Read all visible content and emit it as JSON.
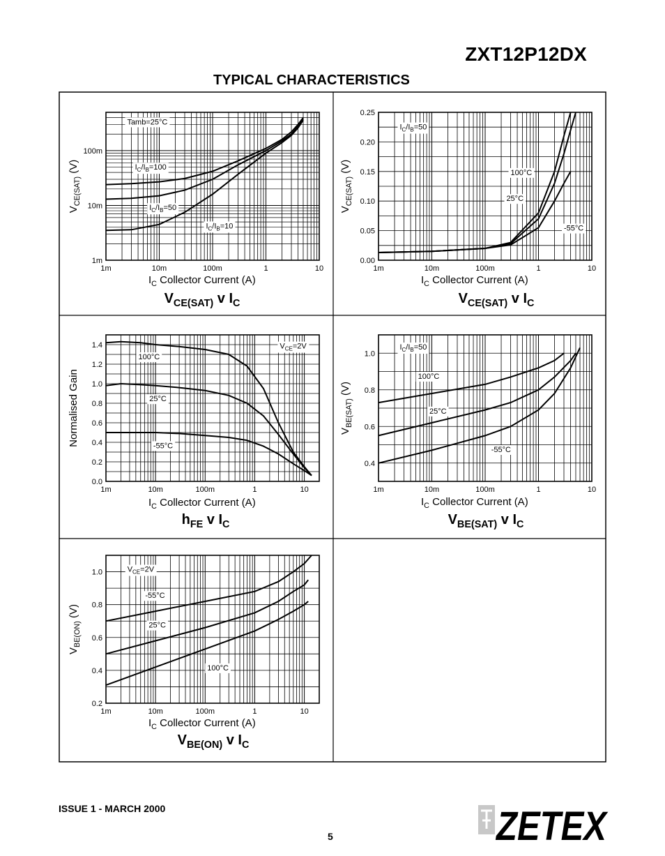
{
  "header": {
    "part_number": "ZXT12P12DX",
    "section_title": "TYPICAL CHARACTERISTICS"
  },
  "footer": {
    "issue": "ISSUE 1 - MARCH 2000",
    "page": "5",
    "logo_text": "ZETEX"
  },
  "chart_data": [
    {
      "type": "line",
      "title_main": "V",
      "title_sub": "CE(SAT)",
      "title_tail": " v I",
      "title_tail_sub": "C",
      "xlabel_main": "I",
      "xlabel_sub": "C",
      "xlabel_tail": "  Collector Current (A)",
      "ylabel_main": "V",
      "ylabel_sub": "CE(SAT)",
      "ylabel_tail": "  (V)",
      "xscale": "log",
      "yscale": "log",
      "xlim": [
        0.001,
        10
      ],
      "ylim": [
        0.001,
        0.5
      ],
      "xticks": [
        {
          "v": 0.001,
          "l": "1m"
        },
        {
          "v": 0.01,
          "l": "10m"
        },
        {
          "v": 0.1,
          "l": "100m"
        },
        {
          "v": 1,
          "l": "1"
        },
        {
          "v": 10,
          "l": "10"
        }
      ],
      "yticks": [
        {
          "v": 0.001,
          "l": "1m"
        },
        {
          "v": 0.01,
          "l": "10m"
        },
        {
          "v": 0.1,
          "l": "100m"
        }
      ],
      "annotations": [
        {
          "text": "Tamb=25°C",
          "x": 0.0025,
          "y": 0.3
        },
        {
          "main": "I",
          "s1": "C",
          "mid": "/I",
          "s2": "B",
          "tail": "=100",
          "x": 0.0035,
          "y": 0.045
        },
        {
          "main": "I",
          "s1": "C",
          "mid": "/I",
          "s2": "B",
          "tail": "=50",
          "x": 0.0065,
          "y": 0.0082
        },
        {
          "main": "I",
          "s1": "C",
          "mid": "/I",
          "s2": "B",
          "tail": "=10",
          "x": 0.075,
          "y": 0.0038
        }
      ],
      "series": [
        {
          "x": [
            0.001,
            0.003,
            0.01,
            0.03,
            0.1,
            0.3,
            1,
            2,
            3,
            4,
            5
          ],
          "y": [
            0.024,
            0.025,
            0.027,
            0.031,
            0.042,
            0.065,
            0.11,
            0.16,
            0.22,
            0.3,
            0.4
          ]
        },
        {
          "x": [
            0.001,
            0.003,
            0.01,
            0.03,
            0.1,
            0.3,
            1,
            2,
            3,
            4,
            5
          ],
          "y": [
            0.013,
            0.0135,
            0.015,
            0.019,
            0.03,
            0.055,
            0.1,
            0.15,
            0.2,
            0.28,
            0.38
          ]
        },
        {
          "x": [
            0.001,
            0.003,
            0.01,
            0.03,
            0.1,
            0.3,
            1,
            2,
            3,
            4,
            5
          ],
          "y": [
            0.0035,
            0.0036,
            0.0045,
            0.0075,
            0.016,
            0.037,
            0.09,
            0.14,
            0.19,
            0.26,
            0.36
          ]
        }
      ]
    },
    {
      "type": "line",
      "title_main": "V",
      "title_sub": "CE(SAT)",
      "title_tail": " v I",
      "title_tail_sub": "C",
      "xlabel_main": "I",
      "xlabel_sub": "C",
      "xlabel_tail": "  Collector Current (A)",
      "ylabel_main": "V",
      "ylabel_sub": "CE(SAT)",
      "ylabel_tail": "  (V)",
      "xscale": "log",
      "yscale": "linear",
      "xlim": [
        0.001,
        10
      ],
      "ylim": [
        0,
        0.25
      ],
      "xticks": [
        {
          "v": 0.001,
          "l": "1m"
        },
        {
          "v": 0.01,
          "l": "10m"
        },
        {
          "v": 0.1,
          "l": "100m"
        },
        {
          "v": 1,
          "l": "1"
        },
        {
          "v": 10,
          "l": "10"
        }
      ],
      "yticks": [
        {
          "v": 0,
          "l": "0.00"
        },
        {
          "v": 0.05,
          "l": "0.05"
        },
        {
          "v": 0.1,
          "l": "0.10"
        },
        {
          "v": 0.15,
          "l": "0.15"
        },
        {
          "v": 0.2,
          "l": "0.20"
        },
        {
          "v": 0.25,
          "l": "0.25"
        }
      ],
      "annotations": [
        {
          "main": "I",
          "s1": "C",
          "mid": "/I",
          "s2": "B",
          "tail": "=50",
          "x": 0.0025,
          "y": 0.221
        },
        {
          "text": "100°C",
          "x": 0.3,
          "y": 0.144
        },
        {
          "text": "25°C",
          "x": 0.25,
          "y": 0.1
        },
        {
          "text": "-55°C",
          "x": 3,
          "y": 0.05
        }
      ],
      "series": [
        {
          "name": "100°C",
          "x": [
            0.001,
            0.01,
            0.1,
            0.3,
            1,
            2,
            3,
            4
          ],
          "y": [
            0.013,
            0.015,
            0.02,
            0.03,
            0.08,
            0.15,
            0.21,
            0.25
          ]
        },
        {
          "name": "25°C",
          "x": [
            0.001,
            0.01,
            0.1,
            0.3,
            1,
            2,
            3,
            4,
            5
          ],
          "y": [
            0.013,
            0.015,
            0.02,
            0.028,
            0.07,
            0.13,
            0.18,
            0.22,
            0.25
          ]
        },
        {
          "name": "-55°C",
          "x": [
            0.001,
            0.01,
            0.1,
            0.3,
            1,
            2,
            3,
            4
          ],
          "y": [
            0.013,
            0.015,
            0.02,
            0.026,
            0.055,
            0.1,
            0.13,
            0.15
          ]
        }
      ]
    },
    {
      "type": "line",
      "title_main": "h",
      "title_sub": "FE",
      "title_tail": " v I",
      "title_tail_sub": "C",
      "xlabel_main": "I",
      "xlabel_sub": "C",
      "xlabel_tail": "  Collector Current (A)",
      "ylabel_main": "Normalised Gain",
      "ylabel_sub": "",
      "ylabel_tail": "",
      "xscale": "log",
      "yscale": "linear",
      "xlim": [
        0.001,
        20
      ],
      "ylim": [
        0,
        1.5
      ],
      "xticks": [
        {
          "v": 0.001,
          "l": "1m"
        },
        {
          "v": 0.01,
          "l": "10m"
        },
        {
          "v": 0.1,
          "l": "100m"
        },
        {
          "v": 1,
          "l": "1"
        },
        {
          "v": 10,
          "l": "10"
        }
      ],
      "yticks": [
        {
          "v": 0,
          "l": "0.0"
        },
        {
          "v": 0.2,
          "l": "0.2"
        },
        {
          "v": 0.4,
          "l": "0.4"
        },
        {
          "v": 0.6,
          "l": "0.6"
        },
        {
          "v": 0.8,
          "l": "0.8"
        },
        {
          "v": 1,
          "l": "1.0"
        },
        {
          "v": 1.2,
          "l": "1.2"
        },
        {
          "v": 1.4,
          "l": "1.4"
        }
      ],
      "annotations": [
        {
          "main": "V",
          "s1": "CE",
          "tail": "=2V",
          "x": 3.2,
          "y": 1.36
        },
        {
          "text": "100°C",
          "x": 0.0045,
          "y": 1.25
        },
        {
          "text": "25°C",
          "x": 0.0075,
          "y": 0.82
        },
        {
          "text": "-55°C",
          "x": 0.009,
          "y": 0.34
        }
      ],
      "series": [
        {
          "name": "100°C",
          "x": [
            0.001,
            0.002,
            0.005,
            0.01,
            0.03,
            0.1,
            0.3,
            0.7,
            1.5,
            3,
            6,
            10,
            14
          ],
          "y": [
            1.42,
            1.43,
            1.42,
            1.4,
            1.38,
            1.35,
            1.3,
            1.18,
            0.95,
            0.6,
            0.3,
            0.15,
            0.06
          ]
        },
        {
          "name": "25°C",
          "x": [
            0.001,
            0.002,
            0.005,
            0.01,
            0.03,
            0.1,
            0.3,
            0.7,
            1.5,
            3,
            6,
            10,
            14
          ],
          "y": [
            0.98,
            1.0,
            0.99,
            0.98,
            0.96,
            0.93,
            0.88,
            0.8,
            0.67,
            0.48,
            0.28,
            0.14,
            0.06
          ]
        },
        {
          "name": "-55°C",
          "x": [
            0.001,
            0.003,
            0.01,
            0.03,
            0.1,
            0.3,
            0.7,
            1.5,
            3,
            6,
            10,
            14
          ],
          "y": [
            0.5,
            0.5,
            0.5,
            0.49,
            0.47,
            0.45,
            0.42,
            0.36,
            0.28,
            0.18,
            0.11,
            0.06
          ]
        }
      ]
    },
    {
      "type": "line",
      "title_main": "V",
      "title_sub": "BE(SAT)",
      "title_tail": " v I",
      "title_tail_sub": "C",
      "xlabel_main": "I",
      "xlabel_sub": "C",
      "xlabel_tail": "  Collector Current (A)",
      "ylabel_main": "V",
      "ylabel_sub": "BE(SAT)",
      "ylabel_tail": "  (V)",
      "xscale": "log",
      "yscale": "linear",
      "xlim": [
        0.001,
        10
      ],
      "ylim": [
        0.3,
        1.1
      ],
      "xticks": [
        {
          "v": 0.001,
          "l": "1m"
        },
        {
          "v": 0.01,
          "l": "10m"
        },
        {
          "v": 0.1,
          "l": "100m"
        },
        {
          "v": 1,
          "l": "1"
        },
        {
          "v": 10,
          "l": "10"
        }
      ],
      "yticks": [
        {
          "v": 0.4,
          "l": "0.4"
        },
        {
          "v": 0.6,
          "l": "0.6"
        },
        {
          "v": 0.8,
          "l": "0.8"
        },
        {
          "v": 1.0,
          "l": "1.0"
        }
      ],
      "annotations": [
        {
          "main": "I",
          "s1": "C",
          "mid": "/I",
          "s2": "B",
          "tail": "=50",
          "x": 0.0025,
          "y": 1.02
        },
        {
          "text": "100°C",
          "x": 0.0055,
          "y": 0.86
        },
        {
          "text": "25°C",
          "x": 0.009,
          "y": 0.67
        },
        {
          "text": "-55°C",
          "x": 0.13,
          "y": 0.46
        }
      ],
      "series": [
        {
          "name": "100°C",
          "x": [
            0.001,
            0.01,
            0.1,
            0.3,
            1,
            2,
            3
          ],
          "y": [
            0.73,
            0.78,
            0.83,
            0.87,
            0.92,
            0.96,
            1.0
          ]
        },
        {
          "name": "25°C",
          "x": [
            0.001,
            0.01,
            0.1,
            0.3,
            1,
            2,
            4,
            5
          ],
          "y": [
            0.55,
            0.62,
            0.69,
            0.73,
            0.8,
            0.87,
            0.96,
            1.0
          ]
        },
        {
          "name": "-55°C",
          "x": [
            0.001,
            0.01,
            0.1,
            0.3,
            1,
            2,
            4,
            6
          ],
          "y": [
            0.4,
            0.47,
            0.55,
            0.6,
            0.69,
            0.78,
            0.92,
            1.03
          ]
        }
      ]
    },
    {
      "type": "line",
      "title_main": "V",
      "title_sub": "BE(ON)",
      "title_tail": " v I",
      "title_tail_sub": "C",
      "xlabel_main": "I",
      "xlabel_sub": "C",
      "xlabel_tail": "  Collector Current (A)",
      "ylabel_main": "V",
      "ylabel_sub": "BE(ON)",
      "ylabel_tail": "  (V)",
      "xscale": "log",
      "yscale": "linear",
      "xlim": [
        0.001,
        20
      ],
      "ylim": [
        0.2,
        1.1
      ],
      "xticks": [
        {
          "v": 0.001,
          "l": "1m"
        },
        {
          "v": 0.01,
          "l": "10m"
        },
        {
          "v": 0.1,
          "l": "100m"
        },
        {
          "v": 1,
          "l": "1"
        },
        {
          "v": 10,
          "l": "10"
        }
      ],
      "yticks": [
        {
          "v": 0.2,
          "l": "0.2"
        },
        {
          "v": 0.4,
          "l": "0.4"
        },
        {
          "v": 0.6,
          "l": "0.6"
        },
        {
          "v": 0.8,
          "l": "0.8"
        },
        {
          "v": 1.0,
          "l": "1.0"
        }
      ],
      "annotations": [
        {
          "main": "V",
          "s1": "CE",
          "tail": "=2V",
          "x": 0.0027,
          "y": 1.0
        },
        {
          "text": "-55°C",
          "x": 0.0062,
          "y": 0.84
        },
        {
          "text": "25°C",
          "x": 0.0073,
          "y": 0.66
        },
        {
          "text": "100°C",
          "x": 0.11,
          "y": 0.4
        }
      ],
      "series": [
        {
          "name": "-55°C",
          "x": [
            0.001,
            0.01,
            0.1,
            1,
            3,
            6,
            10,
            14
          ],
          "y": [
            0.7,
            0.76,
            0.82,
            0.88,
            0.94,
            1.0,
            1.05,
            1.1
          ]
        },
        {
          "name": "25°C",
          "x": [
            0.001,
            0.01,
            0.1,
            1,
            3,
            6,
            10,
            12
          ],
          "y": [
            0.5,
            0.58,
            0.66,
            0.75,
            0.82,
            0.88,
            0.92,
            0.95
          ]
        },
        {
          "name": "100°C",
          "x": [
            0.001,
            0.01,
            0.1,
            1,
            3,
            6,
            10,
            12
          ],
          "y": [
            0.31,
            0.42,
            0.53,
            0.64,
            0.71,
            0.76,
            0.8,
            0.82
          ]
        }
      ]
    }
  ]
}
